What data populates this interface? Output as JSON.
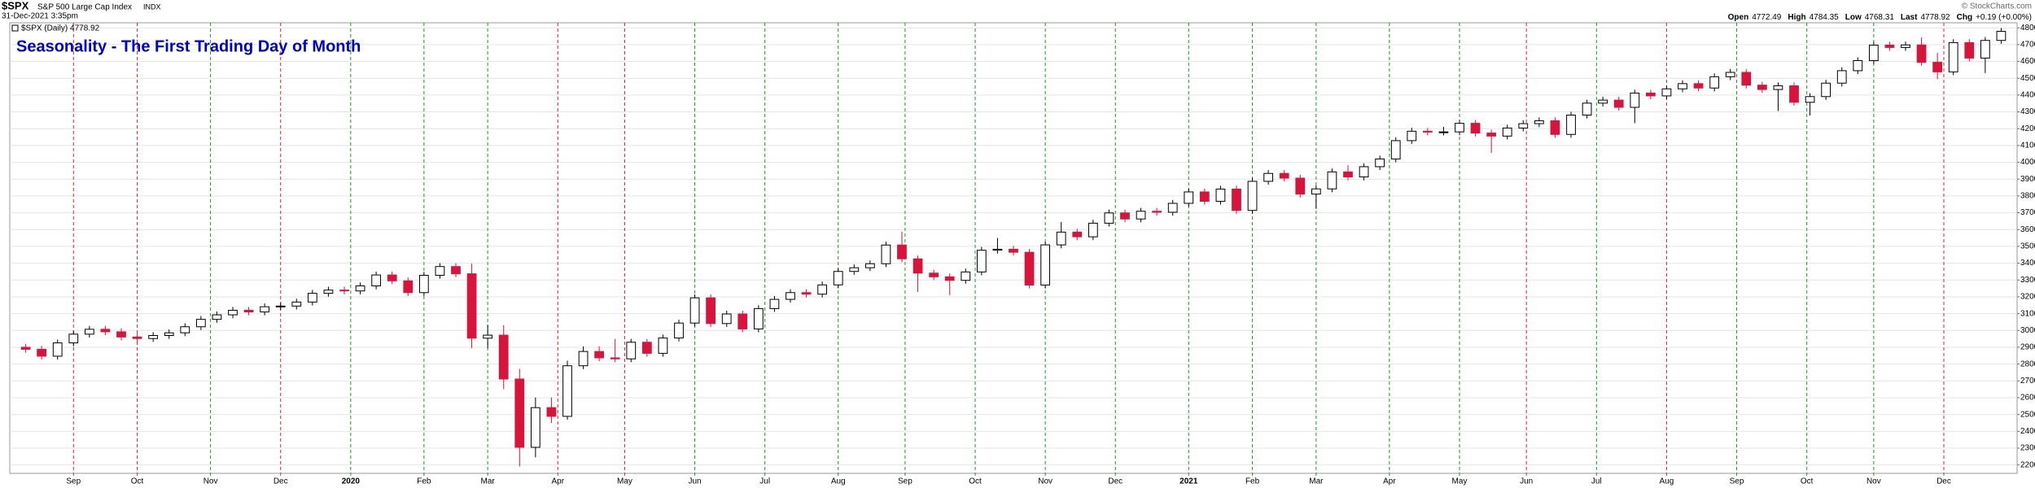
{
  "header": {
    "symbol": "$SPX",
    "name": "S&P 500 Large Cap Index",
    "exchange": "INDX",
    "date": "31-Dec-2021 3:35pm",
    "legend": "$SPX (Daily) 4778.92",
    "credit": "© StockCharts.com",
    "quote": [
      {
        "label": "Open",
        "value": "4772.49"
      },
      {
        "label": "High",
        "value": "4784.35"
      },
      {
        "label": "Low",
        "value": "4768.31"
      },
      {
        "label": "Last",
        "value": "4778.92"
      },
      {
        "label": "Chg",
        "value": "+0.19 (+0.00%)"
      }
    ]
  },
  "chart_data": {
    "type": "candlestick",
    "title": "Seasonality - The First Trading Day of Month",
    "up_color": "#000000",
    "down_color": "#d6143c",
    "title_color": "#0000cc",
    "categories": [
      null,
      null,
      null,
      null,
      null,
      null,
      null,
      null,
      null,
      null,
      null,
      null,
      null,
      null,
      null,
      null,
      null,
      null,
      null,
      null,
      null,
      null,
      null,
      null,
      null,
      null,
      null,
      null,
      null,
      null,
      null,
      null,
      null,
      null,
      null,
      null,
      null,
      null,
      null,
      null,
      null,
      null,
      null,
      null,
      null,
      null,
      null,
      null,
      null,
      null,
      null,
      null,
      null,
      null,
      null,
      null,
      null,
      null,
      null,
      null,
      null,
      null,
      null,
      null,
      null,
      null,
      null,
      null,
      null,
      null,
      null,
      null,
      null,
      null,
      null,
      null,
      null,
      null,
      null,
      null,
      null,
      null,
      null,
      null,
      null,
      null,
      null,
      null,
      null,
      null,
      null,
      null,
      null,
      null,
      null,
      null,
      null,
      null,
      null,
      null,
      null,
      null,
      null,
      null,
      null,
      null,
      null,
      null,
      null,
      null,
      null,
      null,
      null,
      null,
      null,
      null,
      null,
      null,
      null,
      null,
      null,
      null,
      null,
      null,
      null
    ],
    "open": [
      2900,
      2888,
      2847,
      2926,
      2978,
      3007,
      2992,
      2961,
      2952,
      2970,
      2986,
      3022,
      3066,
      3093,
      3120,
      3110,
      3141,
      3145,
      3169,
      3221,
      3240,
      3235,
      3265,
      3330,
      3295,
      3225,
      3328,
      3380,
      3337,
      2954,
      2972,
      2711,
      2305,
      2541,
      2489,
      2790,
      2875,
      2837,
      2831,
      2930,
      2864,
      2955,
      3044,
      3194,
      3041,
      3098,
      3009,
      3130,
      3185,
      3225,
      3216,
      3271,
      3351,
      3373,
      3397,
      3508,
      3426,
      3341,
      3319,
      3298,
      3348,
      3477,
      3483,
      3465,
      3270,
      3509,
      3585,
      3557,
      3638,
      3699,
      3663,
      3709,
      3703,
      3756,
      3824,
      3768,
      3841,
      3714,
      3887,
      3934,
      3906,
      3811,
      3842,
      3943,
      3913,
      3974,
      4020,
      4129,
      4185,
      4180,
      4181,
      4232,
      4174,
      4156,
      4204,
      4230,
      4247,
      4166,
      4281,
      4352,
      4370,
      4327,
      4412,
      4395,
      4437,
      4468,
      4442,
      4509,
      4535,
      4459,
      4433,
      4455,
      4357,
      4391,
      4471,
      4545,
      4605,
      4697,
      4683,
      4698,
      4595,
      4538,
      4712,
      4620,
      4725
    ],
    "high": [
      2920,
      2908,
      2946,
      2998,
      3027,
      3027,
      3012,
      2981,
      2990,
      3006,
      3042,
      3086,
      3113,
      3140,
      3140,
      3161,
      3165,
      3189,
      3241,
      3260,
      3260,
      3285,
      3350,
      3350,
      3315,
      3348,
      3400,
      3400,
      3397,
      3032,
      3032,
      2771,
      2601,
      2601,
      2820,
      2905,
      2905,
      2950,
      2950,
      2950,
      2975,
      3064,
      3214,
      3214,
      3118,
      3118,
      3150,
      3205,
      3245,
      3245,
      3291,
      3371,
      3393,
      3417,
      3528,
      3588,
      3446,
      3361,
      3339,
      3368,
      3497,
      3550,
      3503,
      3485,
      3529,
      3645,
      3605,
      3658,
      3719,
      3719,
      3729,
      3729,
      3776,
      3844,
      3844,
      3861,
      3861,
      3907,
      3954,
      3954,
      3926,
      3862,
      3963,
      3983,
      3994,
      4040,
      4149,
      4205,
      4205,
      4211,
      4252,
      4252,
      4194,
      4224,
      4250,
      4267,
      4267,
      4301,
      4372,
      4390,
      4390,
      4432,
      4432,
      4457,
      4488,
      4488,
      4529,
      4555,
      4555,
      4479,
      4475,
      4475,
      4411,
      4491,
      4565,
      4625,
      4717,
      4717,
      4718,
      4743,
      4652,
      4732,
      4732,
      4745,
      4799
    ],
    "low": [
      2868,
      2827,
      2827,
      2906,
      2958,
      2972,
      2941,
      2932,
      2932,
      2950,
      2966,
      3002,
      3046,
      3073,
      3090,
      3090,
      3121,
      3125,
      3149,
      3201,
      3215,
      3215,
      3245,
      3275,
      3205,
      3205,
      3308,
      3317,
      2894,
      2894,
      2651,
      2191,
      2245,
      2449,
      2469,
      2770,
      2817,
      2811,
      2811,
      2844,
      2844,
      2935,
      3024,
      3021,
      3021,
      2989,
      2989,
      3110,
      3165,
      3196,
      3196,
      3251,
      3331,
      3353,
      3377,
      3406,
      3229,
      3299,
      3209,
      3278,
      3328,
      3457,
      3445,
      3250,
      3250,
      3489,
      3537,
      3537,
      3618,
      3643,
      3643,
      3683,
      3683,
      3736,
      3748,
      3748,
      3694,
      3694,
      3867,
      3886,
      3791,
      3723,
      3822,
      3893,
      3893,
      3954,
      4000,
      4109,
      4160,
      4160,
      4161,
      4154,
      4056,
      4136,
      4184,
      4210,
      4146,
      4146,
      4261,
      4332,
      4307,
      4233,
      4375,
      4375,
      4417,
      4422,
      4422,
      4489,
      4439,
      4413,
      4305,
      4337,
      4278,
      4371,
      4451,
      4525,
      4585,
      4663,
      4663,
      4575,
      4495,
      4518,
      4600,
      4531,
      4705
    ],
    "close": [
      2888,
      2847,
      2926,
      2978,
      3007,
      2992,
      2961,
      2952,
      2970,
      2986,
      3022,
      3066,
      3093,
      3120,
      3110,
      3141,
      3145,
      3169,
      3221,
      3240,
      3235,
      3265,
      3330,
      3295,
      3225,
      3328,
      3380,
      3337,
      2954,
      2972,
      2711,
      2305,
      2541,
      2489,
      2790,
      2875,
      2837,
      2831,
      2930,
      2864,
      2955,
      3044,
      3194,
      3041,
      3098,
      3009,
      3130,
      3185,
      3225,
      3216,
      3271,
      3351,
      3373,
      3397,
      3508,
      3426,
      3341,
      3319,
      3298,
      3348,
      3477,
      3483,
      3465,
      3270,
      3509,
      3585,
      3557,
      3638,
      3699,
      3663,
      3709,
      3703,
      3756,
      3824,
      3768,
      3841,
      3714,
      3887,
      3934,
      3906,
      3811,
      3842,
      3943,
      3913,
      3974,
      4020,
      4129,
      4185,
      4180,
      4181,
      4232,
      4174,
      4156,
      4204,
      4230,
      4247,
      4166,
      4281,
      4352,
      4370,
      4327,
      4412,
      4395,
      4437,
      4468,
      4442,
      4509,
      4535,
      4459,
      4433,
      4455,
      4357,
      4391,
      4471,
      4545,
      4605,
      4697,
      4683,
      4698,
      4595,
      4538,
      4712,
      4620,
      4725,
      4779
    ],
    "xlim": [
      -1,
      125
    ],
    "xticks": [
      {
        "value": 3,
        "label": "Sep"
      },
      {
        "value": 7,
        "label": "Oct"
      },
      {
        "value": 11.6,
        "label": "Nov"
      },
      {
        "value": 16,
        "label": "Dec"
      },
      {
        "value": 20.4,
        "label": "2020"
      },
      {
        "value": 25,
        "label": "Feb"
      },
      {
        "value": 29,
        "label": "Mar"
      },
      {
        "value": 33.4,
        "label": "Apr"
      },
      {
        "value": 37.6,
        "label": "May"
      },
      {
        "value": 42,
        "label": "Jun"
      },
      {
        "value": 46.4,
        "label": "Jul"
      },
      {
        "value": 51,
        "label": "Aug"
      },
      {
        "value": 55.2,
        "label": "Sep"
      },
      {
        "value": 59.6,
        "label": "Oct"
      },
      {
        "value": 64,
        "label": "Nov"
      },
      {
        "value": 68.4,
        "label": "Dec"
      },
      {
        "value": 73,
        "label": "2021"
      },
      {
        "value": 77,
        "label": "Feb"
      },
      {
        "value": 81,
        "label": "Mar"
      },
      {
        "value": 85.6,
        "label": "Apr"
      },
      {
        "value": 90,
        "label": "May"
      },
      {
        "value": 94.2,
        "label": "Jun"
      },
      {
        "value": 98.6,
        "label": "Jul"
      },
      {
        "value": 103,
        "label": "Aug"
      },
      {
        "value": 107.4,
        "label": "Sep"
      },
      {
        "value": 111.8,
        "label": "Oct"
      },
      {
        "value": 116,
        "label": "Nov"
      },
      {
        "value": 120.4,
        "label": "Dec"
      }
    ],
    "month_line_colors": [
      "#e0242c",
      "#e0242c",
      "#1a9a1a",
      "#e0242c",
      "#1a9a1a",
      "#1a9a1a",
      "#1a9a1a",
      "#e0242c",
      "#e0242c",
      "#1a9a1a",
      "#1a9a1a",
      "#1a9a1a",
      "#1a9a1a",
      "#1a9a1a",
      "#1a9a1a",
      "#1a9a1a",
      "#1a9a1a",
      "#1a9a1a",
      "#1a9a1a",
      "#1a9a1a",
      "#1a9a1a",
      "#e0242c",
      "#1a9a1a",
      "#e0242c",
      "#1a9a1a",
      "#1a9a1a",
      "#1a9a1a",
      "#e0242c"
    ],
    "ylim": [
      2150,
      4830
    ],
    "yticks": [
      2200,
      2300,
      2400,
      2500,
      2600,
      2700,
      2800,
      2900,
      3000,
      3100,
      3200,
      3300,
      3400,
      3500,
      3600,
      3700,
      3800,
      3900,
      4000,
      4100,
      4200,
      4300,
      4400,
      4500,
      4600,
      4700,
      4800
    ],
    "grid": true
  }
}
